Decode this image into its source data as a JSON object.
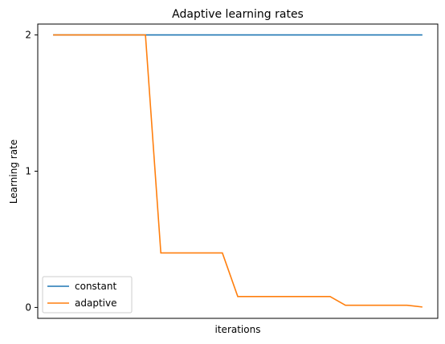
{
  "chart_data": {
    "type": "line",
    "title": "Adaptive learning rates",
    "xlabel": "iterations",
    "ylabel": "Learning rate",
    "xlim": [
      -1,
      25
    ],
    "ylim": [
      -0.08,
      2.08
    ],
    "x_ticks_shown": false,
    "yticks": [
      0,
      1,
      2
    ],
    "ytick_labels": [
      "0",
      "1",
      "2"
    ],
    "grid": false,
    "legend_position": "lower-left",
    "x": [
      0,
      1,
      2,
      3,
      4,
      5,
      6,
      7,
      8,
      9,
      10,
      11,
      12,
      13,
      14,
      15,
      16,
      17,
      18,
      19,
      20,
      21,
      22,
      23,
      24
    ],
    "series": [
      {
        "name": "constant",
        "color": "#1f77b4",
        "values": [
          2,
          2,
          2,
          2,
          2,
          2,
          2,
          2,
          2,
          2,
          2,
          2,
          2,
          2,
          2,
          2,
          2,
          2,
          2,
          2,
          2,
          2,
          2,
          2,
          2
        ]
      },
      {
        "name": "adaptive",
        "color": "#ff7f0e",
        "values": [
          2,
          2,
          2,
          2,
          2,
          2,
          2,
          0.4,
          0.4,
          0.4,
          0.4,
          0.4,
          0.08,
          0.08,
          0.08,
          0.08,
          0.08,
          0.08,
          0.08,
          0.016,
          0.016,
          0.016,
          0.016,
          0.016,
          0.0032
        ]
      }
    ]
  }
}
